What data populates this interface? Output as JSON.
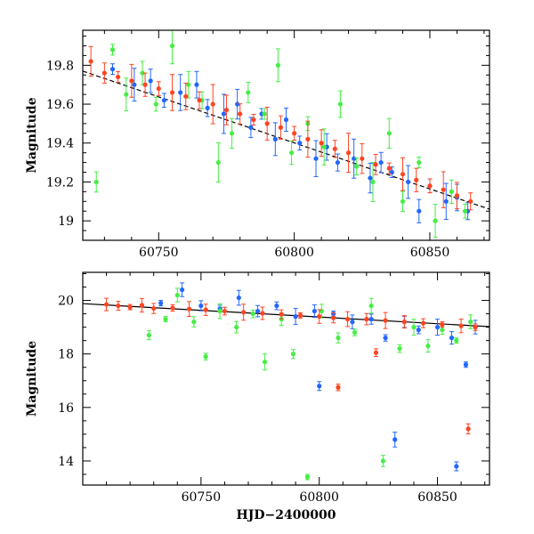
{
  "chart_data": [
    {
      "type": "scatter",
      "title": "",
      "xlabel": "",
      "ylabel": "Magnitude",
      "xlim": [
        60722,
        60872
      ],
      "ylim": [
        19.98,
        18.9
      ],
      "y_inverted": true,
      "xticks": [
        60750,
        60800,
        60850
      ],
      "xtick_labels": [
        "60750",
        "60800",
        "60850"
      ],
      "yticks": [
        19,
        19.2,
        19.4,
        19.6,
        19.8
      ],
      "ytick_labels": [
        "19",
        "19.2",
        "19.4",
        "19.6",
        "19.8"
      ],
      "grid": false,
      "legend": "none",
      "error_bars": true,
      "trend": {
        "x": [
          60722,
          60872
        ],
        "y": [
          19.77,
          19.06
        ],
        "style": "dashed",
        "color": "#000000"
      },
      "series": [
        {
          "color": "#2266ff",
          "x": [
            60733,
            60741,
            60747,
            60752,
            60758,
            60764,
            60768,
            60774,
            60779,
            60784,
            60788,
            60793,
            60797,
            60802,
            60808,
            60812,
            60816,
            60822,
            60828,
            60832,
            60836,
            60842,
            60846,
            60850,
            60856,
            60860,
            60864
          ],
          "y": [
            19.78,
            19.7,
            19.72,
            19.62,
            19.66,
            19.7,
            19.58,
            19.55,
            19.6,
            19.48,
            19.55,
            19.42,
            19.52,
            19.4,
            19.32,
            19.38,
            19.3,
            19.32,
            19.22,
            19.3,
            19.25,
            19.2,
            19.05,
            19.18,
            19.1,
            19.12,
            19.05
          ]
        },
        {
          "color": "#44ee44",
          "x": [
            60727,
            60733,
            60738,
            60744,
            60749,
            60755,
            60761,
            60766,
            60772,
            60777,
            60783,
            60789,
            60794,
            60799,
            60805,
            60811,
            60817,
            60823,
            60829,
            60835,
            60840,
            60846,
            60852,
            60858,
            60863
          ],
          "y": [
            19.2,
            19.88,
            19.65,
            19.76,
            19.6,
            19.9,
            19.7,
            19.62,
            19.3,
            19.45,
            19.66,
            19.55,
            19.8,
            19.35,
            19.5,
            19.38,
            19.6,
            19.28,
            19.2,
            19.45,
            19.1,
            19.3,
            19.0,
            19.15,
            19.05
          ]
        },
        {
          "color": "#ff4422",
          "x": [
            60725,
            60730,
            60735,
            60740,
            60745,
            60750,
            60755,
            60760,
            60765,
            60770,
            60775,
            60780,
            60785,
            60790,
            60795,
            60800,
            60805,
            60810,
            60815,
            60820,
            60825,
            60830,
            60835,
            60840,
            60845,
            60850,
            60855,
            60860,
            60865
          ],
          "y": [
            19.82,
            19.76,
            19.74,
            19.72,
            19.7,
            19.68,
            19.66,
            19.64,
            19.62,
            19.6,
            19.57,
            19.55,
            19.52,
            19.5,
            19.48,
            19.45,
            19.42,
            19.4,
            19.37,
            19.35,
            19.32,
            19.29,
            19.27,
            19.24,
            19.21,
            19.18,
            19.16,
            19.13,
            19.1
          ]
        }
      ]
    },
    {
      "type": "scatter",
      "title": "",
      "xlabel": "HJD−2400000",
      "ylabel": "Magnitude",
      "xlim": [
        60700,
        60872
      ],
      "ylim": [
        21.05,
        13.1
      ],
      "y_inverted": true,
      "xticks": [
        60750,
        60800,
        60850
      ],
      "xtick_labels": [
        "60750",
        "60800",
        "60850"
      ],
      "yticks": [
        14,
        16,
        18,
        20
      ],
      "ytick_labels": [
        "14",
        "16",
        "18",
        "20"
      ],
      "grid": false,
      "legend": "none",
      "error_bars": true,
      "trend": {
        "x": [
          60700,
          60872
        ],
        "y": [
          19.88,
          19.02
        ],
        "style": "solid",
        "color": "#000000"
      },
      "series": [
        {
          "color": "#2266ff",
          "x": [
            60733,
            60742,
            60750,
            60758,
            60766,
            60774,
            60782,
            60790,
            60798,
            60800,
            60806,
            60814,
            60822,
            60828,
            60832,
            60836,
            60842,
            60850,
            60856,
            60858,
            60862,
            60866
          ],
          "y": [
            19.9,
            20.4,
            19.8,
            19.7,
            20.1,
            19.6,
            19.8,
            19.4,
            19.6,
            16.8,
            19.5,
            19.2,
            19.3,
            18.6,
            14.8,
            19.2,
            18.9,
            19.0,
            18.6,
            13.8,
            17.6,
            19.0
          ]
        },
        {
          "color": "#44ee44",
          "x": [
            60728,
            60735,
            60740,
            60747,
            60752,
            60758,
            60765,
            60772,
            60777,
            60784,
            60789,
            60795,
            60801,
            60808,
            60815,
            60822,
            60827,
            60834,
            60840,
            60846,
            60852,
            60858,
            60864
          ],
          "y": [
            18.7,
            19.3,
            20.2,
            19.2,
            17.9,
            19.6,
            19.0,
            19.5,
            17.7,
            19.3,
            18.0,
            13.4,
            19.6,
            18.6,
            18.8,
            19.8,
            14.0,
            18.2,
            19.0,
            18.3,
            18.9,
            18.5,
            19.2
          ]
        },
        {
          "color": "#ff4422",
          "x": [
            60710,
            60715,
            60720,
            60725,
            60730,
            60738,
            60745,
            60752,
            60760,
            60768,
            60776,
            60784,
            60792,
            60800,
            60806,
            60808,
            60812,
            60820,
            60824,
            60828,
            60836,
            60844,
            60852,
            60860,
            60863,
            60866
          ],
          "y": [
            19.85,
            19.8,
            19.75,
            19.82,
            19.7,
            19.72,
            19.68,
            19.65,
            19.6,
            19.56,
            19.52,
            19.48,
            19.44,
            19.4,
            19.35,
            16.75,
            19.3,
            19.3,
            18.05,
            19.25,
            19.2,
            19.15,
            19.1,
            19.05,
            15.2,
            19.0
          ]
        }
      ]
    }
  ]
}
